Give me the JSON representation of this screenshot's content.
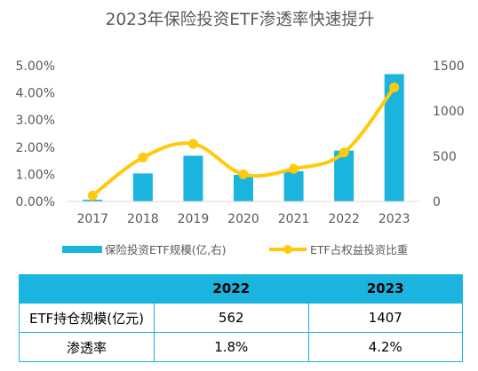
{
  "chart_data": {
    "type": "bar+line",
    "title": "2023年保险投资ETF渗透率快速提升",
    "categories": [
      "2017",
      "2018",
      "2019",
      "2020",
      "2021",
      "2022",
      "2023"
    ],
    "y_left": {
      "ticks": [
        "0.00%",
        "1.00%",
        "2.00%",
        "3.00%",
        "4.00%",
        "5.00%"
      ],
      "ylim": [
        0,
        5
      ],
      "unit": "%"
    },
    "y_right": {
      "ticks": [
        "0",
        "500",
        "1000",
        "1500"
      ],
      "ylim": [
        0,
        1500
      ]
    },
    "series": [
      {
        "name": "保险投资ETF规模(亿,右)",
        "type": "bar",
        "axis": "right",
        "color": "#1ab4df",
        "values": [
          20,
          310,
          505,
          295,
          335,
          562,
          1407
        ]
      },
      {
        "name": "ETF占权益投资比重",
        "type": "line",
        "axis": "left",
        "color": "#ffc90e",
        "values": [
          0.22,
          1.62,
          2.12,
          1.0,
          1.2,
          1.8,
          4.2
        ]
      }
    ],
    "legend_position": "bottom",
    "grid": false
  },
  "table": {
    "headers": [
      "",
      "2022",
      "2023"
    ],
    "rows": [
      {
        "label": "ETF持仓规模(亿元)",
        "values": [
          "562",
          "1407"
        ]
      },
      {
        "label": "渗透率",
        "values": [
          "1.8%",
          "4.2%"
        ]
      }
    ]
  }
}
